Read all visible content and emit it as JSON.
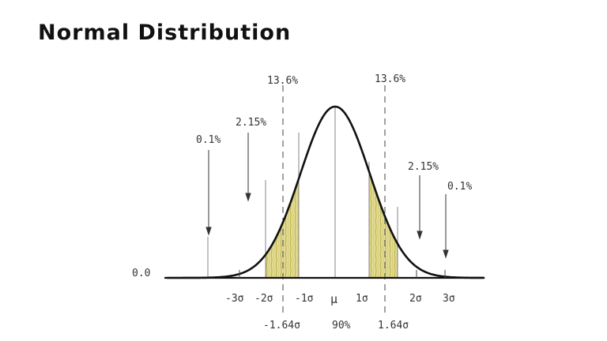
{
  "title": "Normal Distribution",
  "colors": {
    "ink": "#111111",
    "guide": "#555555",
    "fill": "#d7d07a",
    "fill_stroke": "#a9a03a"
  },
  "baseline_label": "0.0",
  "percent_labels": {
    "left_tail": "0.1%",
    "left_mid": "2.15%",
    "left_center": "13.6%",
    "right_center": "13.6%",
    "right_mid": "2.15%",
    "right_tail": "0.1%"
  },
  "axis_labels": {
    "minus_3s": "-3σ",
    "minus_2s": "-2σ",
    "minus_1s": "-1σ",
    "mu": "μ",
    "plus_1s": "1σ",
    "plus_2s": "2σ",
    "plus_3s": "3σ"
  },
  "bottom_labels": {
    "left_cut": "-1.64σ",
    "middle": "90%",
    "right_cut": "1.64σ"
  }
}
